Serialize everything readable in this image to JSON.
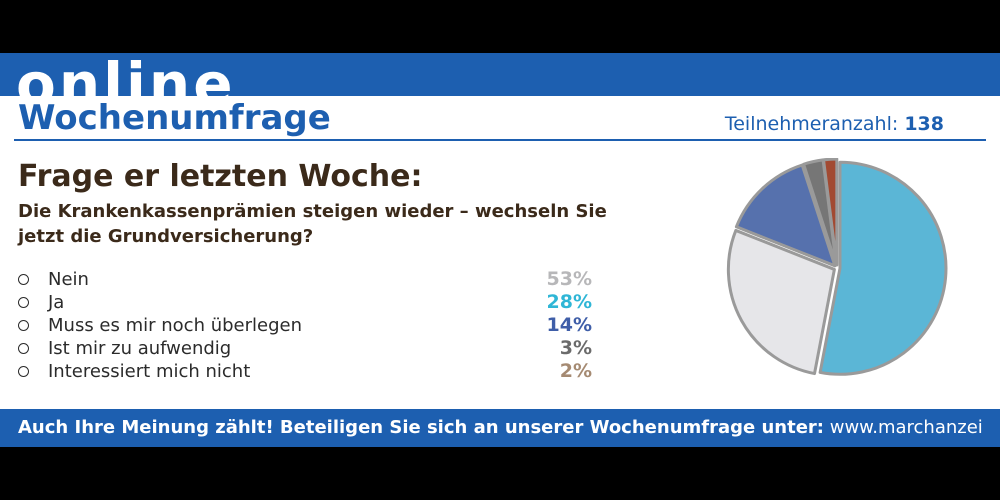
{
  "header": {
    "brand": "online",
    "title": "Wochenumfrage",
    "participants_label": "Teilnehmeranzahl:",
    "participants_count": "138"
  },
  "poll": {
    "heading": "Frage er letzten Woche:",
    "question": "Die Krankenkassenprämien steigen wieder – wechseln Sie jetzt die Grundversicherung?",
    "options": [
      {
        "label": "Nein",
        "percent": "53%"
      },
      {
        "label": "Ja",
        "percent": "28%"
      },
      {
        "label": "Muss es mir noch überlegen",
        "percent": "14%"
      },
      {
        "label": "Ist mir zu aufwendig",
        "percent": "3%"
      },
      {
        "label": "Interessiert mich nicht",
        "percent": "2%"
      }
    ]
  },
  "footer": {
    "cta": "Auch Ihre Meinung zählt! Beteiligen Sie sich an unserer Wochenumfrage unter:",
    "url": "www.marchanzei"
  },
  "colors": {
    "brand_blue": "#1d5fb0",
    "pct_nein": "#b7b7b9",
    "pct_ja": "#2fb6d6",
    "pct_muss": "#3f5ea8",
    "pct_aufwendig": "#6b6b6b",
    "pct_nicht": "#a58a72"
  },
  "chart_data": {
    "type": "pie",
    "categories": [
      "Nein",
      "Ja",
      "Muss es mir noch überlegen",
      "Ist mir zu aufwendig",
      "Interessiert mich nicht"
    ],
    "values": [
      53,
      28,
      14,
      3,
      2
    ],
    "slice_colors": [
      "#5bb6d6",
      "#e6e6e9",
      "#5671ad",
      "#767676",
      "#a24a32"
    ],
    "outline_color": "#9a9a9a"
  }
}
